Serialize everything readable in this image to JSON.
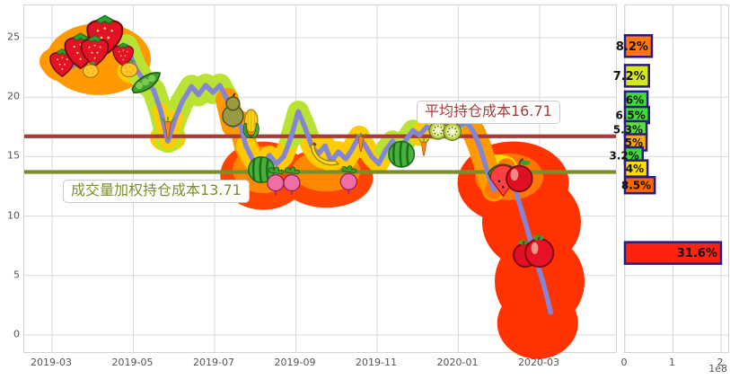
{
  "figure": {
    "background": "#ffffff",
    "grid_color": "#d9d9d9",
    "tick_color": "#545454"
  },
  "annotations": {
    "avg_cost_label": "平均持仓成本16.71",
    "vwap_cost_label": "成交量加权持仓成本13.71"
  },
  "chart_data": [
    {
      "type": "line",
      "title": "",
      "xlabel": "",
      "ylabel": "",
      "x_tick_labels": [
        "2019-03",
        "2019-05",
        "2019-07",
        "2019-09",
        "2019-11",
        "2020-01",
        "2020-03"
      ],
      "y_ticks": [
        0,
        5,
        10,
        15,
        20,
        25
      ],
      "ylim": [
        -1.5,
        27.6
      ],
      "grid": true,
      "series": [
        {
          "name": "price",
          "color": "#8585d6",
          "x_unit": "months_since_2019-03",
          "points": [
            [
              0.0,
              23.0
            ],
            [
              0.29,
              23.6
            ],
            [
              0.51,
              22.6
            ],
            [
              0.77,
              24.3
            ],
            [
              0.99,
              24.6
            ],
            [
              1.22,
              23.6
            ],
            [
              1.39,
              25.0
            ],
            [
              1.61,
              23.8
            ],
            [
              1.83,
              24.3
            ],
            [
              2.06,
              22.4
            ],
            [
              2.28,
              21.3
            ],
            [
              2.5,
              20.6
            ],
            [
              2.67,
              18.9
            ],
            [
              2.85,
              16.3
            ],
            [
              3.03,
              18.2
            ],
            [
              3.2,
              19.6
            ],
            [
              3.43,
              20.9
            ],
            [
              3.6,
              20.2
            ],
            [
              3.78,
              21.0
            ],
            [
              3.96,
              20.4
            ],
            [
              4.13,
              21.0
            ],
            [
              4.31,
              19.8
            ],
            [
              4.46,
              17.6
            ],
            [
              4.62,
              17.9
            ],
            [
              4.77,
              15.9
            ],
            [
              4.95,
              14.7
            ],
            [
              5.15,
              14.1
            ],
            [
              5.35,
              15.1
            ],
            [
              5.52,
              14.4
            ],
            [
              5.7,
              15.0
            ],
            [
              5.88,
              16.6
            ],
            [
              6.06,
              18.8
            ],
            [
              6.23,
              17.4
            ],
            [
              6.39,
              15.9
            ],
            [
              6.54,
              15.2
            ],
            [
              6.72,
              15.9
            ],
            [
              6.87,
              14.6
            ],
            [
              7.05,
              15.4
            ],
            [
              7.23,
              14.8
            ],
            [
              7.38,
              15.6
            ],
            [
              7.56,
              16.7
            ],
            [
              7.71,
              15.9
            ],
            [
              7.87,
              15.0
            ],
            [
              8.04,
              14.4
            ],
            [
              8.22,
              15.6
            ],
            [
              8.38,
              16.3
            ],
            [
              8.55,
              15.7
            ],
            [
              8.71,
              16.4
            ],
            [
              8.88,
              17.2
            ],
            [
              9.04,
              16.8
            ],
            [
              9.22,
              17.5
            ],
            [
              9.37,
              17.3
            ],
            [
              9.55,
              17.9
            ],
            [
              9.7,
              17.4
            ],
            [
              9.88,
              18.0
            ],
            [
              10.03,
              17.6
            ],
            [
              10.21,
              17.9
            ],
            [
              10.37,
              17.1
            ],
            [
              10.52,
              15.9
            ],
            [
              10.7,
              13.9
            ],
            [
              10.87,
              12.2
            ],
            [
              11.03,
              13.4
            ],
            [
              11.18,
              14.1
            ],
            [
              11.34,
              12.9
            ],
            [
              11.51,
              11.0
            ],
            [
              11.67,
              9.2
            ],
            [
              11.8,
              7.6
            ],
            [
              11.93,
              6.1
            ],
            [
              12.07,
              4.6
            ],
            [
              12.18,
              3.2
            ],
            [
              12.27,
              1.9
            ]
          ]
        }
      ],
      "reference_lines": [
        {
          "name": "avg-cost",
          "value": 16.71,
          "label": "平均持仓成本16.71",
          "color": "#a93a3a"
        },
        {
          "name": "vwap-cost",
          "value": 13.71,
          "label": "成交量加权持仓成本13.71",
          "color": "#7a8f2a"
        }
      ]
    },
    {
      "type": "bar",
      "orientation": "horizontal",
      "x_ticks": [
        "0",
        "1",
        "2"
      ],
      "x_scale_note": "1e8",
      "xlim": [
        0,
        2.15
      ],
      "bar_border_color": "#2b1a82",
      "bars": [
        {
          "price": 24.3,
          "label": "8.2%",
          "value_1e8": 0.56,
          "color": "#ff7711",
          "tall": true
        },
        {
          "price": 21.8,
          "label": "7.2%",
          "value_1e8": 0.5,
          "color": "#d6e81c",
          "tall": true
        },
        {
          "price": 19.8,
          "label": "6%",
          "value_1e8": 0.47,
          "color": "#3ddd33",
          "tall": false
        },
        {
          "price": 18.5,
          "label": "6.5%",
          "value_1e8": 0.5,
          "color": "#3ddd33",
          "tall": false
        },
        {
          "price": 17.3,
          "label": "5.3%",
          "value_1e8": 0.45,
          "color": "#5ae23c",
          "tall": false
        },
        {
          "price": 16.2,
          "label": "5%",
          "value_1e8": 0.45,
          "color": "#ffaa00",
          "tall": false
        },
        {
          "price": 15.1,
          "label": "3.2%",
          "value_1e8": 0.37,
          "color": "#3ddd33",
          "tall": false
        },
        {
          "price": 14.0,
          "label": "4%",
          "value_1e8": 0.47,
          "color": "#ffdd00",
          "tall": false
        },
        {
          "price": 12.6,
          "label": "8.5%",
          "value_1e8": 0.62,
          "color": "#ff6600",
          "tall": false
        },
        {
          "price": 6.9,
          "label": "31.6%",
          "value_1e8": 2.0,
          "color": "#ff2211",
          "tall": true
        }
      ]
    }
  ],
  "decorations": {
    "halo_colors": {
      "profit_low": "#b9e332",
      "warm": "#ffcc00",
      "hot": "#ff9900",
      "loss": "#ff4400"
    },
    "blobs": [
      {
        "m": 1.15,
        "p": 23.2,
        "rx": 58,
        "ry": 40,
        "color": "#ff9900"
      },
      {
        "m": 0.35,
        "p": 22.9,
        "rx": 28,
        "ry": 22,
        "color": "#ff9900"
      },
      {
        "m": 2.0,
        "p": 22.2,
        "rx": 18,
        "ry": 14,
        "color": "#ffcc00"
      },
      {
        "m": 2.85,
        "p": 16.6,
        "rx": 20,
        "ry": 16,
        "color": "#ffcc00"
      },
      {
        "m": 5.2,
        "p": 13.4,
        "rx": 48,
        "ry": 38,
        "color": "#ff4400"
      },
      {
        "m": 5.2,
        "p": 13.9,
        "rx": 34,
        "ry": 26,
        "color": "#ff8800"
      },
      {
        "m": 5.3,
        "p": 14.4,
        "rx": 20,
        "ry": 14,
        "color": "#ffcc00"
      },
      {
        "m": 6.75,
        "p": 13.2,
        "rx": 52,
        "ry": 33,
        "color": "#ff4400"
      },
      {
        "m": 6.75,
        "p": 13.8,
        "rx": 38,
        "ry": 23,
        "color": "#ff8800"
      },
      {
        "m": 6.85,
        "p": 14.8,
        "rx": 22,
        "ry": 12,
        "color": "#ffcc00"
      },
      {
        "m": 11.35,
        "p": 12.8,
        "rx": 62,
        "ry": 46,
        "color": "#ff3300"
      },
      {
        "m": 11.8,
        "p": 9.5,
        "rx": 55,
        "ry": 52,
        "color": "#ff3300"
      },
      {
        "m": 12.0,
        "p": 4.5,
        "rx": 50,
        "ry": 52,
        "color": "#ff3300"
      },
      {
        "m": 11.95,
        "p": 1.0,
        "rx": 45,
        "ry": 40,
        "color": "#ff3300"
      },
      {
        "m": 11.25,
        "p": 13.3,
        "rx": 38,
        "ry": 26,
        "color": "#ff7700"
      },
      {
        "m": 11.0,
        "p": 14.2,
        "rx": 20,
        "ry": 13,
        "color": "#ffdd00"
      }
    ],
    "halo_segments": [
      {
        "from": 0,
        "to": 9,
        "color": "#ff9900",
        "width": 28
      },
      {
        "from": 8,
        "to": 13,
        "color": "#b9e332",
        "width": 26
      },
      {
        "from": 13,
        "to": 22,
        "color": "#b9e332",
        "width": 26
      },
      {
        "from": 12,
        "to": 14,
        "color": "#ffcc00",
        "width": 18
      },
      {
        "from": 21,
        "to": 26,
        "color": "#ff9900",
        "width": 26
      },
      {
        "from": 24,
        "to": 31,
        "color": "#ffcc00",
        "width": 22
      },
      {
        "from": 30,
        "to": 33,
        "color": "#b9e332",
        "width": 24
      },
      {
        "from": 33,
        "to": 40,
        "color": "#ffcc00",
        "width": 24
      },
      {
        "from": 40,
        "to": 44,
        "color": "#ffcc00",
        "width": 22
      },
      {
        "from": 44,
        "to": 49,
        "color": "#b9e332",
        "width": 24
      },
      {
        "from": 49,
        "to": 53,
        "color": "#ffcc00",
        "width": 22
      },
      {
        "from": 53,
        "to": 58,
        "color": "#b9e332",
        "width": 24
      },
      {
        "from": 57,
        "to": 60,
        "color": "#ff9900",
        "width": 26
      },
      {
        "from": 60,
        "to": 63,
        "color": "#ff7700",
        "width": 20
      }
    ],
    "fruits": [
      {
        "type": "strawberry",
        "m": 0.25,
        "p": 22.9,
        "size": 36
      },
      {
        "type": "strawberry",
        "m": 0.7,
        "p": 23.9,
        "size": 46
      },
      {
        "type": "strawberry",
        "m": 1.3,
        "p": 25.2,
        "size": 52
      },
      {
        "type": "strawberry",
        "m": 1.05,
        "p": 23.9,
        "size": 40
      },
      {
        "type": "strawberry",
        "m": 1.75,
        "p": 23.6,
        "size": 30
      },
      {
        "type": "lemon",
        "m": 0.95,
        "p": 22.3,
        "size": 26
      },
      {
        "type": "lemon",
        "m": 1.9,
        "p": 22.4,
        "size": 28
      },
      {
        "type": "peas",
        "m": 2.3,
        "p": 21.2,
        "size": 40
      },
      {
        "type": "carrot",
        "m": 2.85,
        "p": 17.4,
        "size": 28
      },
      {
        "type": "pear",
        "m": 4.45,
        "p": 18.9,
        "size": 42
      },
      {
        "type": "corn",
        "m": 4.9,
        "p": 17.8,
        "size": 36
      },
      {
        "type": "watermelon",
        "m": 5.15,
        "p": 13.9,
        "size": 38
      },
      {
        "type": "radish",
        "m": 5.5,
        "p": 13.0,
        "size": 36
      },
      {
        "type": "radish",
        "m": 5.9,
        "p": 13.0,
        "size": 36
      },
      {
        "type": "banana",
        "m": 6.75,
        "p": 15.4,
        "size": 36
      },
      {
        "type": "radish",
        "m": 7.3,
        "p": 13.1,
        "size": 36
      },
      {
        "type": "carrot",
        "m": 7.6,
        "p": 16.2,
        "size": 24
      },
      {
        "type": "watermelon",
        "m": 8.6,
        "p": 15.2,
        "size": 38
      },
      {
        "type": "carrot",
        "m": 9.15,
        "p": 15.8,
        "size": 22
      },
      {
        "type": "kiwi",
        "m": 9.5,
        "p": 17.2,
        "size": 30
      },
      {
        "type": "kiwi",
        "m": 9.85,
        "p": 17.1,
        "size": 30
      },
      {
        "type": "melonslice",
        "m": 11.1,
        "p": 13.1,
        "size": 44
      },
      {
        "type": "apple",
        "m": 11.5,
        "p": 13.4,
        "size": 44
      },
      {
        "type": "tomato",
        "m": 11.85,
        "p": 7.2,
        "size": 52
      }
    ]
  }
}
